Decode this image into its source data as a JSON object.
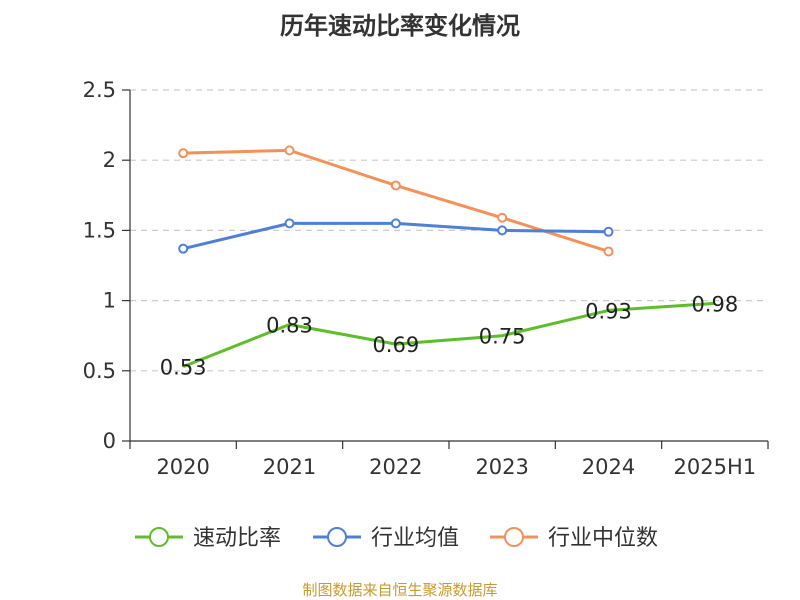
{
  "chart_data": {
    "type": "line",
    "title": "历年速动比率变化情况",
    "categories": [
      "2020",
      "2021",
      "2022",
      "2023",
      "2024",
      "2025H1"
    ],
    "ylim": [
      0,
      2.5
    ],
    "yticks": [
      "0",
      "0.5",
      "1",
      "1.5",
      "2",
      "2.5"
    ],
    "grid": true,
    "legend_position": "bottom",
    "series": [
      {
        "name": "速动比率",
        "color": "#5cbf2a",
        "values": [
          0.53,
          0.83,
          0.69,
          0.75,
          0.93,
          0.98
        ],
        "labels": [
          "0.53",
          "0.83",
          "0.69",
          "0.75",
          "0.93",
          "0.98"
        ]
      },
      {
        "name": "行业均值",
        "color": "#4e7fd9",
        "values": [
          1.37,
          1.55,
          1.55,
          1.5,
          1.49,
          null
        ]
      },
      {
        "name": "行业中位数",
        "color": "#f59058",
        "values": [
          2.05,
          2.07,
          1.82,
          1.59,
          1.35,
          null
        ]
      }
    ]
  },
  "source": "制图数据来自恒生聚源数据库"
}
